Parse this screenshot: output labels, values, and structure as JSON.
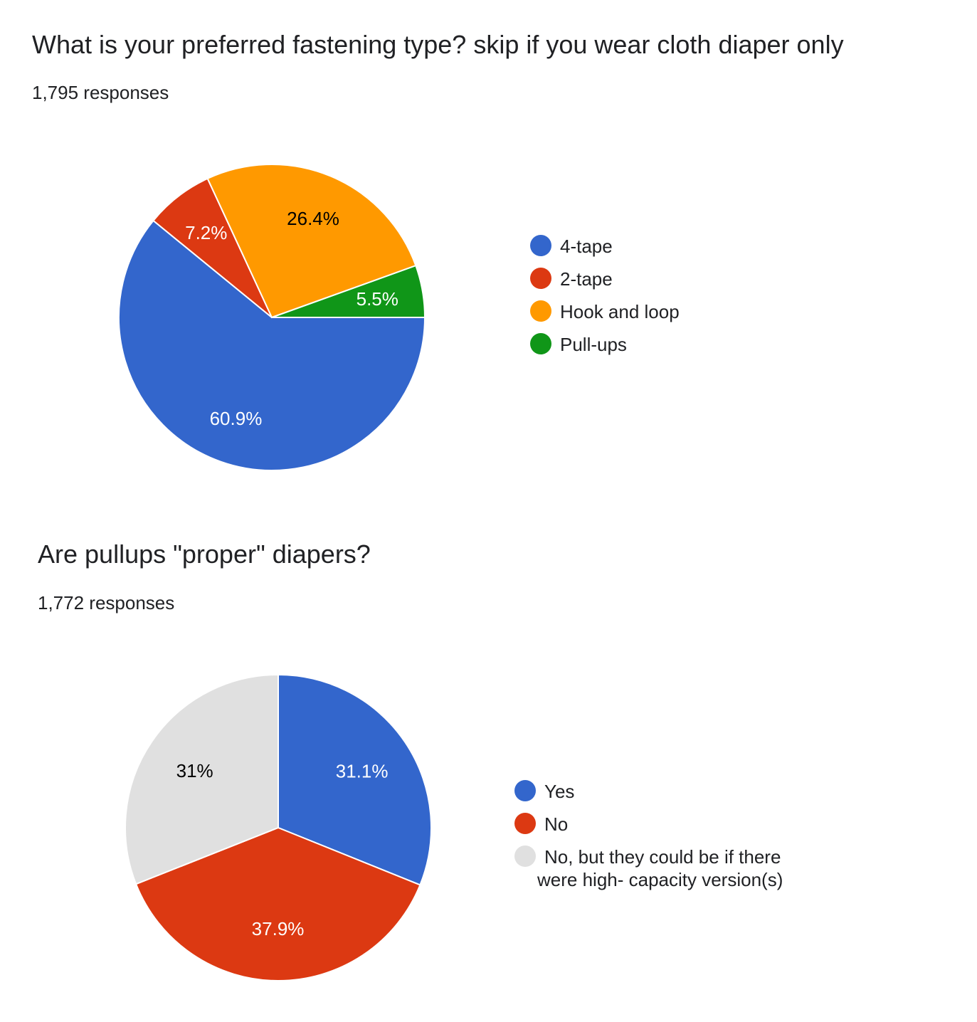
{
  "charts": [
    {
      "title": "What is your preferred fastening type? skip if you wear cloth diaper only",
      "responses": "1,795 responses"
    },
    {
      "title": "Are pullups \"proper\" diapers?",
      "responses": "1,772 responses"
    }
  ],
  "chart_data": [
    {
      "type": "pie",
      "title": "What is your preferred fastening type? skip if you wear cloth diaper only",
      "labels": [
        "4-tape",
        "2-tape",
        "Hook and loop",
        "Pull-ups"
      ],
      "values": [
        60.9,
        7.2,
        26.4,
        5.5
      ],
      "display_labels": [
        "60.9%",
        "7.2%",
        "26.4%",
        "5.5%"
      ],
      "colors": [
        "#3366cc",
        "#dc3912",
        "#ff9900",
        "#109618"
      ],
      "label_colors": [
        "#ffffff",
        "#ffffff",
        "#000000",
        "#ffffff"
      ],
      "legend": "right"
    },
    {
      "type": "pie",
      "title": "Are pullups \"proper\" diapers?",
      "labels": [
        "Yes",
        "No",
        "No, but they could be if there were high- capacity version(s)"
      ],
      "legend_lines": [
        [
          "Yes"
        ],
        [
          "No"
        ],
        [
          "No, but they could be if there",
          "were high- capacity version(s)"
        ]
      ],
      "values": [
        31.1,
        37.9,
        31.0
      ],
      "display_labels": [
        "31.1%",
        "37.9%",
        "31%"
      ],
      "colors": [
        "#3366cc",
        "#dc3912",
        "#e0e0e0"
      ],
      "label_colors": [
        "#ffffff",
        "#ffffff",
        "#000000"
      ],
      "legend": "right"
    }
  ]
}
